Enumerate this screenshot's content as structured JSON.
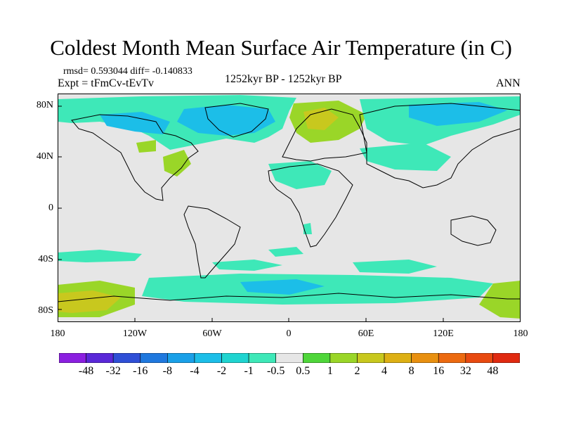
{
  "title": "Coldest Month Mean Surface Air Temperature (in C)",
  "stats": "rmsd= 0.593044  diff= -0.140833",
  "experiment": "Expt = tFmCv-tEvTv",
  "period": "1252kyr BP - 1252kyr BP",
  "season": "ANN",
  "lat_labels": [
    "80N",
    "40N",
    "0",
    "40S",
    "80S"
  ],
  "lon_labels": [
    "180",
    "120W",
    "60W",
    "0",
    "60E",
    "120E",
    "180"
  ],
  "colorbar": {
    "labels": [
      "-48",
      "-32",
      "-16",
      "-8",
      "-4",
      "-2",
      "-1",
      "-0.5",
      "0.5",
      "1",
      "2",
      "4",
      "8",
      "16",
      "32",
      "48"
    ],
    "colors": [
      "#8b1fe0",
      "#5a28d8",
      "#2f4fd6",
      "#1f78de",
      "#1aa0e8",
      "#1cbee8",
      "#1fd4d0",
      "#3ee8b8",
      "#e6e6e6",
      "#4fd63a",
      "#9ad628",
      "#c8c81e",
      "#ddb014",
      "#e89010",
      "#ec6a10",
      "#e84a10",
      "#e02a10"
    ]
  },
  "map_colors": {
    "neutral": "#e6e6e6",
    "cool": "#3ee8b8",
    "cooler": "#1cbee8",
    "warm": "#9ad628",
    "warmer": "#c8c81e"
  }
}
